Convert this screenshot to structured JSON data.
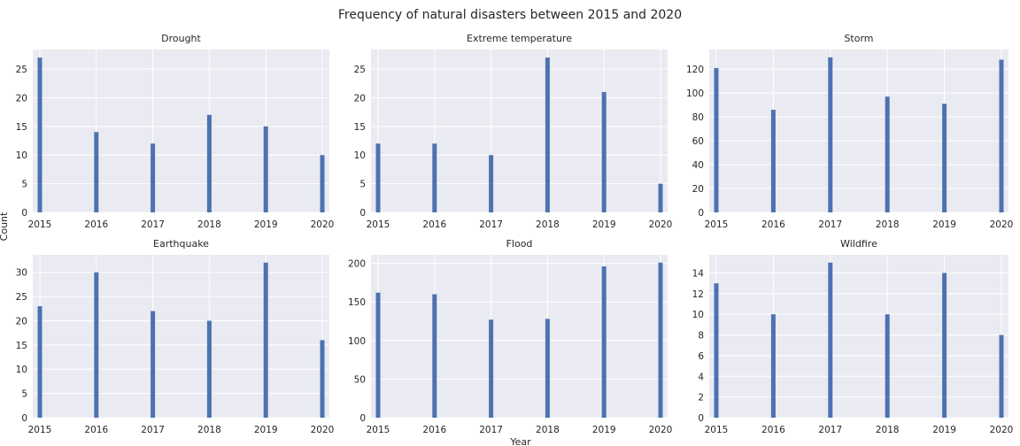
{
  "figure": {
    "title": "Frequency of natural disasters between 2015 and 2020",
    "xlabel": "Year",
    "ylabel": "Count",
    "style": {
      "panel_bg": "#EAEAF2",
      "grid": "#FFFFFF",
      "bar_color": "#4C72B0"
    }
  },
  "chart_data": [
    {
      "type": "bar",
      "title": "Drought",
      "categories": [
        "2015",
        "2016",
        "2017",
        "2018",
        "2019",
        "2020"
      ],
      "values": [
        27,
        14,
        12,
        17,
        15,
        10
      ],
      "ylim": [
        0,
        28.4
      ],
      "yticks": [
        0,
        5,
        10,
        15,
        20,
        25
      ],
      "grid": true
    },
    {
      "type": "bar",
      "title": "Extreme temperature",
      "categories": [
        "2015",
        "2016",
        "2017",
        "2018",
        "2019",
        "2020"
      ],
      "values": [
        12,
        12,
        10,
        27,
        21,
        5
      ],
      "ylim": [
        0,
        28.4
      ],
      "yticks": [
        0,
        5,
        10,
        15,
        20,
        25
      ],
      "grid": true
    },
    {
      "type": "bar",
      "title": "Storm",
      "categories": [
        "2015",
        "2016",
        "2017",
        "2018",
        "2019",
        "2020"
      ],
      "values": [
        121,
        86,
        130,
        97,
        91,
        128
      ],
      "ylim": [
        0,
        136.5
      ],
      "yticks": [
        0,
        20,
        40,
        60,
        80,
        100,
        120
      ],
      "grid": true
    },
    {
      "type": "bar",
      "title": "Earthquake",
      "categories": [
        "2015",
        "2016",
        "2017",
        "2018",
        "2019",
        "2020"
      ],
      "values": [
        23,
        30,
        22,
        20,
        32,
        16
      ],
      "ylim": [
        0,
        33.6
      ],
      "yticks": [
        0,
        5,
        10,
        15,
        20,
        25,
        30
      ],
      "grid": true
    },
    {
      "type": "bar",
      "title": "Flood",
      "categories": [
        "2015",
        "2016",
        "2017",
        "2018",
        "2019",
        "2020"
      ],
      "values": [
        162,
        160,
        127,
        128,
        196,
        201
      ],
      "ylim": [
        0,
        211
      ],
      "yticks": [
        0,
        50,
        100,
        150,
        200
      ],
      "grid": true
    },
    {
      "type": "bar",
      "title": "Wildfire",
      "categories": [
        "2015",
        "2016",
        "2017",
        "2018",
        "2019",
        "2020"
      ],
      "values": [
        13,
        10,
        15,
        10,
        14,
        8
      ],
      "ylim": [
        0,
        15.75
      ],
      "yticks": [
        0,
        2,
        4,
        6,
        8,
        10,
        12,
        14
      ],
      "grid": true
    }
  ]
}
